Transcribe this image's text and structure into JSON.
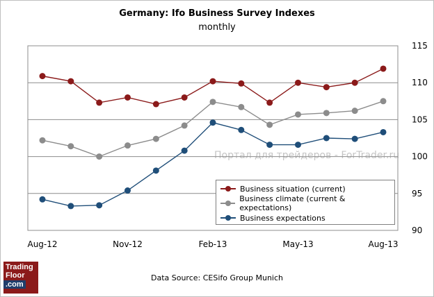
{
  "chart_data": {
    "type": "line",
    "title": "Germany: Ifo Business Survey Indexes",
    "subtitle": "monthly",
    "categories": [
      "Aug-12",
      "Sep-12",
      "Oct-12",
      "Nov-12",
      "Dec-12",
      "Jan-13",
      "Feb-13",
      "Mar-13",
      "Apr-13",
      "May-13",
      "Jun-13",
      "Jul-13",
      "Aug-13"
    ],
    "x_tick_labels": [
      "Aug-12",
      "Nov-12",
      "Feb-13",
      "May-13",
      "Aug-13"
    ],
    "y_ticks": [
      "115",
      "110",
      "105",
      "100",
      "95",
      "90"
    ],
    "ylim": [
      90,
      115
    ],
    "y_axis_position": "right",
    "grid": true,
    "legend_position": "bottom-right",
    "series": [
      {
        "name": "Business situation (current)",
        "color": "#8b1a1a",
        "values": [
          110.9,
          110.2,
          107.3,
          108.0,
          107.1,
          108.0,
          110.2,
          109.9,
          107.3,
          110.0,
          109.4,
          110.0,
          111.9
        ]
      },
      {
        "name": "Business climate (current & expectations)",
        "color": "#8c8c8c",
        "values": [
          102.2,
          101.4,
          100.0,
          101.5,
          102.4,
          104.2,
          107.4,
          106.7,
          104.3,
          105.7,
          105.9,
          106.2,
          107.5
        ]
      },
      {
        "name": "Business expectations",
        "color": "#1f4e79",
        "values": [
          94.2,
          93.3,
          93.4,
          95.4,
          98.1,
          100.8,
          104.6,
          103.6,
          101.6,
          101.6,
          102.5,
          102.4,
          103.3
        ]
      }
    ]
  },
  "source_text": "Data Source: CESifo Group Munich",
  "watermark": "Портал для трейдеров - ForTrader.ru",
  "logo": {
    "line1": "Trading",
    "line2": "Floor",
    "line3": ".com"
  }
}
